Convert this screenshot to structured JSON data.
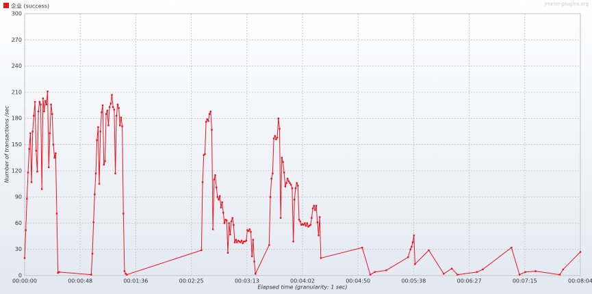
{
  "chart_data": {
    "type": "line",
    "watermark": "jmeter-plugins.org",
    "xlabel": "Elapsed time (granularity: 1 sec)",
    "ylabel": "Number of transactions /sec",
    "x": [
      0,
      1,
      2,
      3,
      4,
      5,
      6,
      7,
      8,
      9,
      10,
      11,
      12,
      13,
      14,
      15,
      16,
      17,
      18,
      19,
      20,
      21,
      22,
      23,
      24,
      25,
      26,
      27,
      28,
      29,
      30,
      58,
      59,
      60,
      61,
      62,
      63,
      64,
      65,
      66,
      67,
      68,
      69,
      70,
      71,
      72,
      73,
      74,
      75,
      76,
      77,
      78,
      79,
      80,
      81,
      82,
      83,
      84,
      85,
      86,
      87,
      88,
      89,
      154,
      155,
      156,
      157,
      158,
      159,
      160,
      161,
      162,
      163,
      164,
      165,
      166,
      167,
      168,
      169,
      170,
      171,
      172,
      173,
      174,
      175,
      176,
      177,
      178,
      179,
      180,
      181,
      182,
      183,
      184,
      185,
      186,
      187,
      188,
      189,
      190,
      191,
      192,
      193,
      194,
      195,
      196,
      197,
      198,
      199,
      200,
      201,
      213,
      214,
      215,
      216,
      217,
      218,
      219,
      220,
      221,
      222,
      223,
      224,
      225,
      226,
      227,
      228,
      229,
      230,
      231,
      232,
      233,
      234,
      235,
      236,
      237,
      238,
      239,
      240,
      241,
      242,
      243,
      244,
      245,
      246,
      247,
      248,
      249,
      250,
      251,
      252,
      253,
      254,
      255,
      256,
      257,
      258,
      294,
      301,
      305,
      315,
      334,
      336,
      337,
      338,
      339,
      340,
      352,
      365,
      372,
      377,
      394,
      399,
      424,
      431,
      436,
      445,
      466,
      469,
      484
    ],
    "series": [
      {
        "name": "企业 (success)",
        "color": "#e8141e",
        "values": [
          20,
          52,
          88,
          118,
          145,
          163,
          107,
          165,
          183,
          199,
          143,
          119,
          188,
          199,
          196,
          99,
          203,
          188,
          200,
          196,
          211,
          124,
          163,
          196,
          185,
          150,
          135,
          140,
          71,
          3,
          4,
          1,
          25,
          61,
          93,
          117,
          155,
          170,
          105,
          165,
          187,
          195,
          127,
          131,
          185,
          189,
          172,
          193,
          197,
          207,
          193,
          190,
          117,
          183,
          196,
          192,
          172,
          181,
          171,
          71,
          5,
          2,
          1,
          29,
          107,
          138,
          139,
          176,
          179,
          177,
          185,
          188,
          167,
          53,
          110,
          115,
          101,
          90,
          87,
          91,
          78,
          84,
          72,
          60,
          64,
          63,
          26,
          60,
          47,
          62,
          66,
          58,
          38,
          41,
          38,
          40,
          39,
          38,
          40,
          37,
          39,
          39,
          40,
          52,
          51,
          53,
          50,
          22,
          41,
          16,
          2,
          35,
          90,
          111,
          117,
          157,
          160,
          156,
          158,
          180,
          168,
          66,
          135,
          130,
          118,
          102,
          106,
          111,
          108,
          106,
          104,
          100,
          39,
          87,
          100,
          106,
          103,
          64,
          62,
          58,
          59,
          58,
          60,
          57,
          60,
          56,
          57,
          58,
          66,
          77,
          80,
          75,
          80,
          61,
          46,
          67,
          20,
          32,
          1,
          4,
          6,
          21,
          30,
          33,
          38,
          46,
          13,
          29,
          2,
          8,
          1,
          4,
          7,
          32,
          1,
          4,
          5,
          1,
          7,
          27
        ]
      }
    ],
    "xlim": [
      0,
      484
    ],
    "xticks": [
      {
        "value": 0,
        "label": "00:00:00"
      },
      {
        "value": 48.4,
        "label": "00:00:48"
      },
      {
        "value": 96.8,
        "label": "00:01:36"
      },
      {
        "value": 145.2,
        "label": "00:02:25"
      },
      {
        "value": 193.6,
        "label": "00:03:13"
      },
      {
        "value": 242,
        "label": "00:04:02"
      },
      {
        "value": 290.4,
        "label": "00:04:50"
      },
      {
        "value": 338.8,
        "label": "00:05:38"
      },
      {
        "value": 387.2,
        "label": "00:06:27"
      },
      {
        "value": 435.6,
        "label": "00:07:15"
      },
      {
        "value": 484,
        "label": "00:08:04"
      }
    ],
    "ylim": [
      0,
      300
    ],
    "yticks": [
      0,
      30,
      60,
      90,
      120,
      150,
      180,
      210,
      240,
      270,
      300
    ],
    "grid": true
  }
}
